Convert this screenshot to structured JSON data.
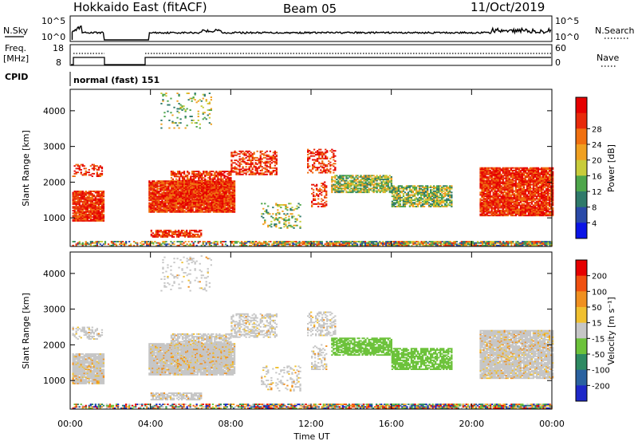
{
  "header": {
    "title": "Hokkaido East (fitACF)",
    "beam": "Beam 05",
    "date": "11/Oct/2019"
  },
  "nsky_panel": {
    "left_label": "N.Sky",
    "left_ticks": [
      "10^5",
      "10^0"
    ],
    "right_ticks": [
      "10^5",
      "10^0"
    ],
    "right_label": "N.Search"
  },
  "freq_panel": {
    "left_label_1": "Freq.",
    "left_label_2": "[MHz]",
    "left_ticks": [
      "18",
      "8"
    ],
    "right_ticks": [
      "60",
      "0"
    ],
    "right_label": "Nave"
  },
  "cpid": {
    "label": "CPID",
    "text": "normal (fast) 151"
  },
  "chart_data": [
    {
      "type": "heatmap",
      "name_key": "power",
      "ylabel": "Slant Range [km]",
      "y_ticks": [
        "1000",
        "2000",
        "3000",
        "4000"
      ],
      "y_values": [
        1000,
        2000,
        3000,
        4000
      ],
      "ylim": [
        200,
        4600
      ],
      "xlim": [
        0,
        24
      ],
      "colorbar_label": "Power [dB]",
      "colorbar_ticks": [
        "4",
        "8",
        "12",
        "16",
        "20",
        "24",
        "28"
      ],
      "colorbar_colors": [
        "#0a14e6",
        "#2a4aa8",
        "#2f7a6a",
        "#4ea64b",
        "#c8cc3a",
        "#f0a020",
        "#f07010",
        "#e82a0a",
        "#e60000"
      ]
    },
    {
      "type": "heatmap",
      "name_key": "velocity",
      "ylabel": "Slant Range [km]",
      "y_ticks": [
        "1000",
        "2000",
        "3000",
        "4000"
      ],
      "y_values": [
        1000,
        2000,
        3000,
        4000
      ],
      "ylim": [
        200,
        4600
      ],
      "xlim": [
        0,
        24
      ],
      "xlabel": "Time UT",
      "x_ticks": [
        "00:00",
        "04:00",
        "08:00",
        "12:00",
        "16:00",
        "20:00",
        "00:00"
      ],
      "x_values": [
        0,
        4,
        8,
        12,
        16,
        20,
        24
      ],
      "colorbar_label": "Velocity [m s⁻¹]",
      "colorbar_ticks": [
        "200",
        "100",
        "50",
        "15",
        "-15",
        "-50",
        "-100",
        "-200"
      ],
      "colorbar_colors": [
        "#1e28c8",
        "#2a62a0",
        "#2e8a62",
        "#6cc23a",
        "#c6c6c6",
        "#f0c030",
        "#f09020",
        "#f05010",
        "#e60000"
      ]
    }
  ]
}
